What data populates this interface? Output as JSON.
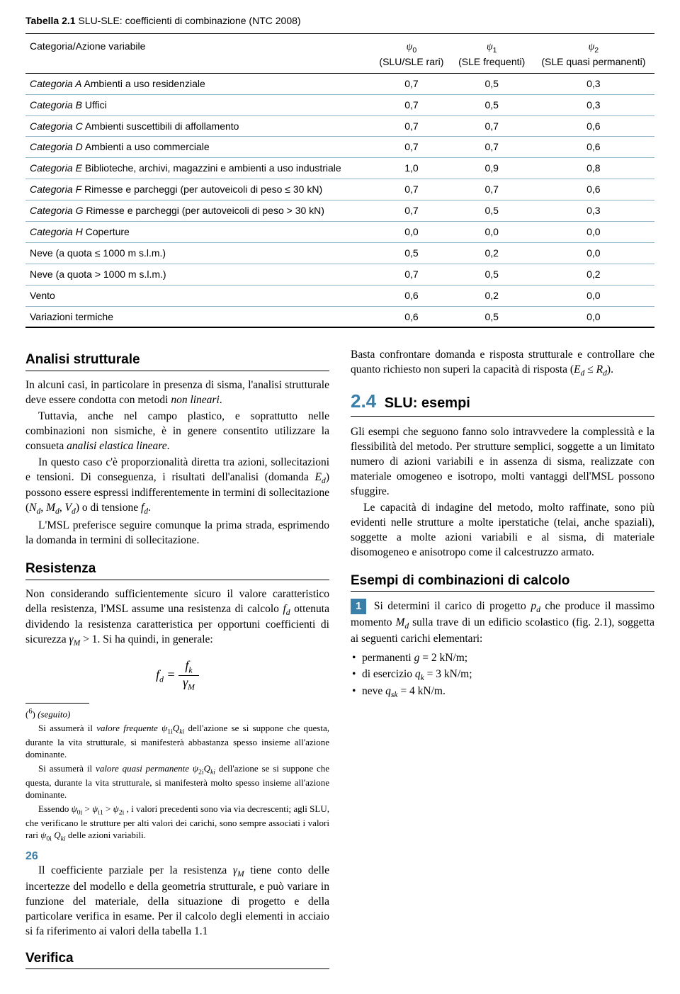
{
  "table": {
    "caption_bold": "Tabella 2.1",
    "caption_rest": " SLU-SLE: coefficienti di combinazione (NTC 2008)",
    "header_category": "Categoria/Azione variabile",
    "header_psi0_a": "ψ",
    "header_psi0_b": "(SLU/SLE rari)",
    "header_psi1_a": "ψ",
    "header_psi1_b": "(SLE frequenti)",
    "header_psi2_a": "ψ",
    "header_psi2_b": "(SLE quasi permanenti)",
    "rows": [
      {
        "label_a": "Categoria A",
        "label_b": " Ambienti a uso residenziale",
        "v0": "0,7",
        "v1": "0,5",
        "v2": "0,3"
      },
      {
        "label_a": "Categoria B",
        "label_b": " Uffici",
        "v0": "0,7",
        "v1": "0,5",
        "v2": "0,3"
      },
      {
        "label_a": "Categoria C",
        "label_b": " Ambienti suscettibili di affollamento",
        "v0": "0,7",
        "v1": "0,7",
        "v2": "0,6"
      },
      {
        "label_a": "Categoria D",
        "label_b": " Ambienti a uso commerciale",
        "v0": "0,7",
        "v1": "0,7",
        "v2": "0,6"
      },
      {
        "label_a": "Categoria E",
        "label_b": " Biblioteche, archivi, magazzini e ambienti a uso industriale",
        "v0": "1,0",
        "v1": "0,9",
        "v2": "0,8"
      },
      {
        "label_a": "Categoria F",
        "label_b": " Rimesse e parcheggi (per autoveicoli di peso ≤ 30 kN)",
        "v0": "0,7",
        "v1": "0,7",
        "v2": "0,6"
      },
      {
        "label_a": "Categoria G",
        "label_b": " Rimesse e parcheggi (per autoveicoli di peso > 30 kN)",
        "v0": "0,7",
        "v1": "0,5",
        "v2": "0,3"
      },
      {
        "label_a": "Categoria H",
        "label_b": " Coperture",
        "v0": "0,0",
        "v1": "0,0",
        "v2": "0,0"
      },
      {
        "label_a": "",
        "label_b": "Neve (a quota ≤ 1000 m s.l.m.)",
        "v0": "0,5",
        "v1": "0,2",
        "v2": "0,0"
      },
      {
        "label_a": "",
        "label_b": "Neve (a quota > 1000 m s.l.m.)",
        "v0": "0,7",
        "v1": "0,5",
        "v2": "0,2"
      },
      {
        "label_a": "",
        "label_b": "Vento",
        "v0": "0,6",
        "v1": "0,2",
        "v2": "0,0"
      },
      {
        "label_a": "",
        "label_b": "Variazioni termiche",
        "v0": "0,6",
        "v1": "0,5",
        "v2": "0,0"
      }
    ]
  },
  "h_analisi": "Analisi strutturale",
  "p1a": "In alcuni casi, in particolare in presenza di sisma, l'analisi strutturale deve essere condotta con metodi ",
  "p1b": "non lineari",
  "p1c": ".",
  "p2a": "Tuttavia, anche nel campo plastico, e soprattutto nelle combinazioni non sismiche, è in genere consentito utilizzare la consueta ",
  "p2b": "analisi elastica lineare",
  "p2c": ".",
  "p3": "In questo caso c'è proporzionalità diretta tra azioni, sollecitazioni e tensioni. Di conseguenza, i risultati dell'analisi (domanda Ed) possono essere espressi indifferentemente in termini di sollecitazione (Nd, Md, Vd) o di tensione fd.",
  "p4": "L'MSL preferisce seguire comunque la prima strada, esprimendo la domanda in termini di sollecitazione.",
  "h_resistenza": "Resistenza",
  "p5": "Non considerando sufficientemente sicuro il valore caratteristico della resistenza, l'MSL assume una resistenza di calcolo fd ottenuta dividendo la resistenza caratteristica per opportuni coefficienti di sicurezza γM > 1. Si ha quindi, in generale:",
  "formula_left": "fd = ",
  "formula_num": "fk",
  "formula_den": "γM",
  "fn_marker": "(6) (seguito)",
  "fn1": "Si assumerà il valore frequente ψ1i Qki dell'azione se si suppone che questa, durante la vita strutturale, si manifesterà abbastanza spesso insieme all'azione dominante.",
  "fn2": "Si assumerà il valore quasi permanente ψ2i Qki dell'azione se si suppone che questa, durante la vita strutturale, si manifesterà molto spesso insieme all'azione dominante.",
  "fn3": "Essendo ψ0i > ψi1 > ψ2i , i valori precedenti sono via via decrescenti; agli SLU, che verificano le strutture per alti valori dei carichi, sono sempre associati i valori rari ψ0i Qki delle azioni variabili.",
  "p_coeff": "Il coefficiente parziale per la resistenza γM tiene conto delle incertezze del modello e della geometria strutturale, e può variare in funzione del materiale, della situazione di progetto e della particolare verifica in esame. Per il calcolo degli elementi in acciaio si fa riferimento ai valori della tabella 1.1",
  "h_verifica": "Verifica",
  "p_ver": "Basta confrontare domanda e risposta strutturale e controllare che quanto richiesto non superi la capacità di risposta (Ed ≤ Rd).",
  "secnum": "2.4",
  "sectitle": " SLU: esempi",
  "p_ex1": "Gli esempi che seguono fanno solo intravvedere la complessità e la flessibilità del metodo. Per strutture semplici, soggette a un limitato numero di azioni variabili e in assenza di sisma, realizzate con materiale omogeneo e isotropo, molti vantaggi dell'MSL possono sfuggire.",
  "p_ex2": "Le capacità di indagine del metodo, molto raffinate, sono più evidenti nelle strutture a molte iperstatiche (telai, anche spaziali), soggette a molte azioni variabili e al sisma, di materiale disomogeneo e anisotropo come il calcestruzzo armato.",
  "h_esempi": "Esempi di combinazioni di calcolo",
  "ex_num": "1",
  "ex_text": " Si determini il carico di progetto pd che produce il massimo momento Md sulla trave di un edificio scolastico (fig. 2.1), soggetta ai seguenti carichi elementari:",
  "b1": "permanenti g = 2 kN/m;",
  "b2": "di esercizio qk = 3 kN/m;",
  "b3": "neve qsk = 4 kN/m.",
  "pagenum": "26"
}
